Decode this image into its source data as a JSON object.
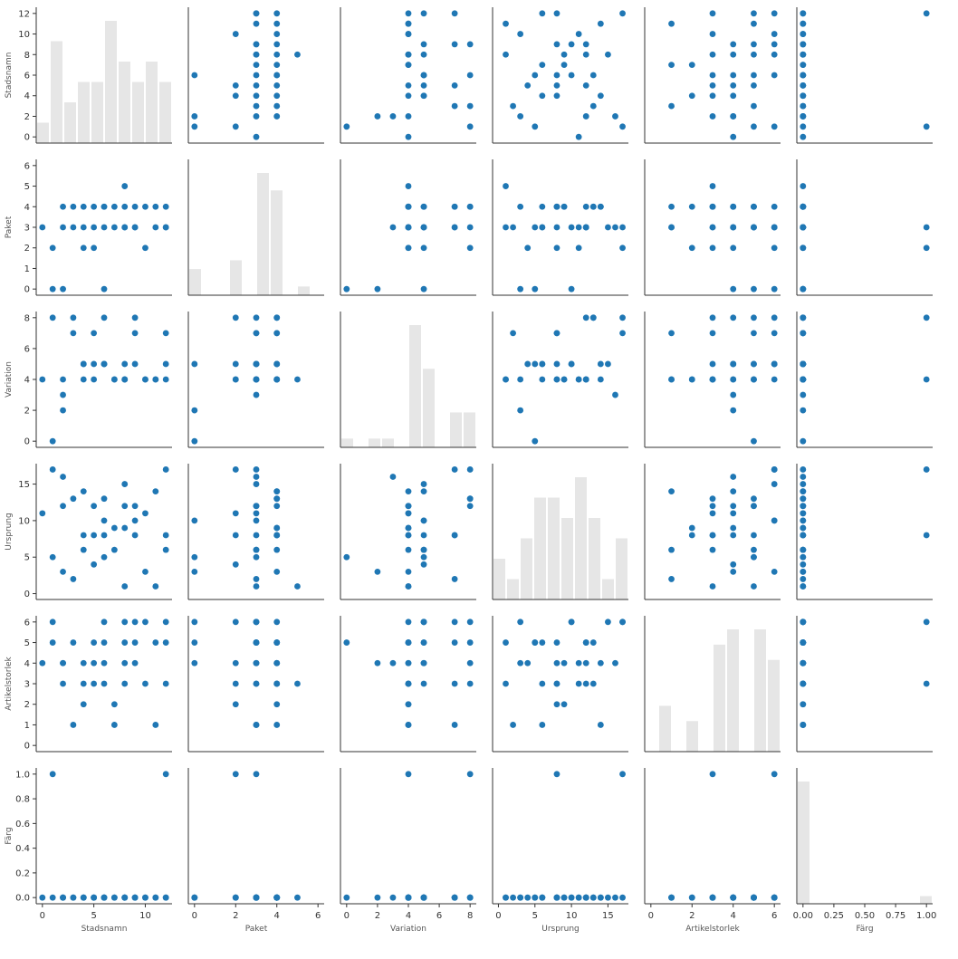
{
  "chart_data": {
    "type": "scatter",
    "kind": "pairplot",
    "marker_color": "#1f77b4",
    "grid": false,
    "variables": [
      {
        "name": "Stadsnamn",
        "x_label": "Stadsnamn",
        "y_label": "Stadsnamn",
        "ticks": [
          0,
          2,
          4,
          6,
          8,
          10,
          12
        ],
        "tick_labels": [
          "0",
          "2",
          "4",
          "6",
          "8",
          "10",
          "12"
        ],
        "x_ticks": [
          0,
          5,
          10
        ],
        "x_tick_labels": [
          "0",
          "5",
          "10"
        ],
        "range": [
          -0.6,
          12.6
        ]
      },
      {
        "name": "Paket",
        "x_label": "Paket",
        "y_label": "Paket",
        "ticks": [
          0,
          1,
          2,
          3,
          4,
          5,
          6
        ],
        "tick_labels": [
          "0",
          "1",
          "2",
          "3",
          "4",
          "5",
          "6"
        ],
        "x_ticks": [
          0,
          2,
          4,
          6
        ],
        "x_tick_labels": [
          "0",
          "2",
          "4",
          "6"
        ],
        "range": [
          -0.3,
          6.3
        ]
      },
      {
        "name": "Variation",
        "x_label": "Variation",
        "y_label": "Variation",
        "ticks": [
          0,
          2,
          4,
          6,
          8
        ],
        "tick_labels": [
          "0",
          "2",
          "4",
          "6",
          "8"
        ],
        "x_ticks": [
          0,
          2,
          4,
          6,
          8
        ],
        "x_tick_labels": [
          "0",
          "2",
          "4",
          "6",
          "8"
        ],
        "range": [
          -0.4,
          8.4
        ]
      },
      {
        "name": "Ursprung",
        "x_label": "Ursprung",
        "y_label": "Ursprung",
        "ticks": [
          0,
          5,
          10,
          15
        ],
        "tick_labels": [
          "0",
          "5",
          "10",
          "15"
        ],
        "x_ticks": [
          0,
          5,
          10,
          15
        ],
        "x_tick_labels": [
          "0",
          "5",
          "10",
          "15"
        ],
        "range": [
          -0.8,
          17.8
        ]
      },
      {
        "name": "Artikelstorlek",
        "x_label": "Artikelstorlek",
        "y_label": "Artikelstorlek",
        "ticks": [
          0,
          1,
          2,
          3,
          4,
          5,
          6
        ],
        "tick_labels": [
          "0",
          "1",
          "2",
          "3",
          "4",
          "5",
          "6"
        ],
        "x_ticks": [
          0,
          2,
          4,
          6
        ],
        "x_tick_labels": [
          "0",
          "2",
          "4",
          "6"
        ],
        "range": [
          -0.3,
          6.3
        ]
      },
      {
        "name": "Färg",
        "x_label": "Färg",
        "y_label": "Färg",
        "ticks": [
          0,
          0.2,
          0.4,
          0.6,
          0.8,
          1.0
        ],
        "tick_labels": [
          "0.0",
          "0.2",
          "0.4",
          "0.6",
          "0.8",
          "1.0"
        ],
        "x_ticks": [
          0,
          0.25,
          0.5,
          0.75,
          1.0
        ],
        "x_tick_labels": [
          "0.00",
          "0.25",
          "0.50",
          "0.75",
          "1.00"
        ],
        "range": [
          -0.05,
          1.05
        ]
      }
    ],
    "observations": [
      [
        0,
        3,
        4,
        11,
        4,
        0
      ],
      [
        1,
        0,
        0,
        5,
        5,
        0
      ],
      [
        1,
        2,
        8,
        17,
        6,
        1
      ],
      [
        2,
        0,
        2,
        3,
        4,
        0
      ],
      [
        2,
        3,
        3,
        16,
        4,
        0
      ],
      [
        2,
        4,
        4,
        12,
        3,
        0
      ],
      [
        3,
        4,
        8,
        13,
        5,
        0
      ],
      [
        3,
        3,
        7,
        2,
        1,
        0
      ],
      [
        4,
        2,
        4,
        8,
        2,
        0
      ],
      [
        4,
        4,
        5,
        14,
        4,
        0
      ],
      [
        4,
        3,
        5,
        6,
        3,
        0
      ],
      [
        5,
        2,
        5,
        4,
        4,
        0
      ],
      [
        5,
        3,
        4,
        12,
        5,
        0
      ],
      [
        5,
        4,
        7,
        8,
        3,
        0
      ],
      [
        6,
        4,
        5,
        8,
        4,
        0
      ],
      [
        6,
        3,
        5,
        5,
        5,
        0
      ],
      [
        6,
        0,
        5,
        10,
        6,
        0
      ],
      [
        6,
        4,
        8,
        13,
        3,
        0
      ],
      [
        7,
        3,
        4,
        6,
        1,
        0
      ],
      [
        7,
        4,
        4,
        9,
        2,
        0
      ],
      [
        8,
        5,
        4,
        1,
        3,
        0
      ],
      [
        8,
        4,
        4,
        9,
        4,
        0
      ],
      [
        8,
        3,
        4,
        12,
        5,
        0
      ],
      [
        8,
        3,
        5,
        15,
        6,
        0
      ],
      [
        9,
        3,
        5,
        10,
        6,
        0
      ],
      [
        9,
        4,
        7,
        8,
        5,
        0
      ],
      [
        9,
        3,
        8,
        12,
        4,
        0
      ],
      [
        10,
        4,
        4,
        3,
        6,
        0
      ],
      [
        10,
        2,
        4,
        11,
        3,
        0
      ],
      [
        11,
        3,
        4,
        1,
        5,
        0
      ],
      [
        11,
        4,
        4,
        14,
        1,
        0
      ],
      [
        12,
        4,
        5,
        6,
        5,
        0
      ],
      [
        12,
        3,
        4,
        8,
        3,
        1
      ],
      [
        12,
        3,
        7,
        17,
        6,
        0
      ]
    ]
  }
}
